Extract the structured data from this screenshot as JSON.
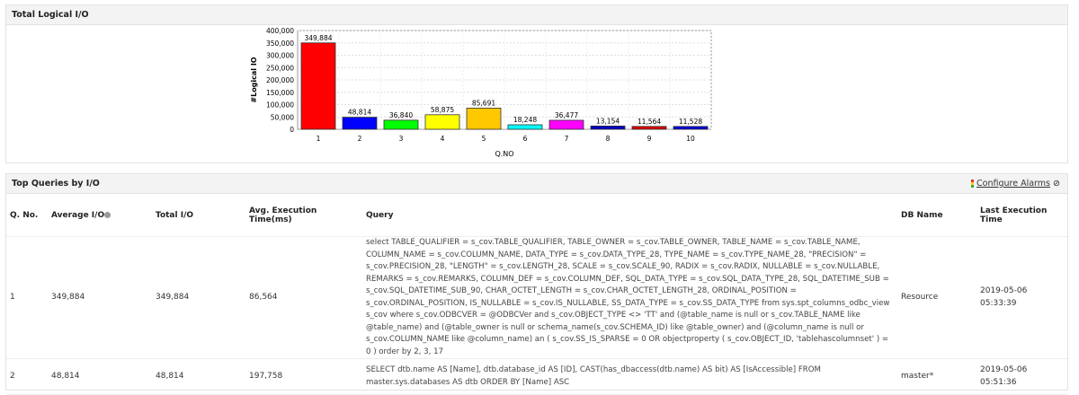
{
  "panel1": {
    "title": "Total Logical I/O"
  },
  "chart_data": {
    "type": "bar",
    "xlabel": "Q.NO",
    "ylabel": "#Logical IO",
    "ylim": [
      0,
      400000
    ],
    "yticks": [
      "0",
      "50,000",
      "100,000",
      "150,000",
      "200,000",
      "250,000",
      "300,000",
      "350,000",
      "400,000"
    ],
    "categories": [
      "1",
      "2",
      "3",
      "4",
      "5",
      "6",
      "7",
      "8",
      "9",
      "10"
    ],
    "values": [
      349884,
      48814,
      36840,
      58875,
      85691,
      18248,
      36477,
      13154,
      11564,
      11528
    ],
    "labels": [
      "349,884",
      "48,814",
      "36,840",
      "58,875",
      "85,691",
      "18,248",
      "36,477",
      "13,154",
      "11,564",
      "11,528"
    ],
    "colors": [
      "#ff0000",
      "#0000ff",
      "#00ff00",
      "#ffff00",
      "#ffc800",
      "#00ffff",
      "#ff00ff",
      "#0000c0",
      "#e00000",
      "#0000e0"
    ],
    "grid": true
  },
  "panel2": {
    "title": "Top Queries by I/O",
    "configure_alarms": "Configure Alarms",
    "columns": [
      "Q. No.",
      "Average I/O",
      "Total I/O",
      "Avg. Execution Time(ms)",
      "Query",
      "DB Name",
      "Last Execution Time"
    ],
    "rows": [
      {
        "qno": "1",
        "avg_io": "349,884",
        "total_io": "349,884",
        "avg_exec": "86,564",
        "query": "select TABLE_QUALIFIER = s_cov.TABLE_QUALIFIER, TABLE_OWNER = s_cov.TABLE_OWNER, TABLE_NAME = s_cov.TABLE_NAME, COLUMN_NAME = s_cov.COLUMN_NAME, DATA_TYPE = s_cov.DATA_TYPE_28, TYPE_NAME = s_cov.TYPE_NAME_28, \"PRECISION\" = s_cov.PRECISION_28, \"LENGTH\" = s_cov.LENGTH_28, SCALE = s_cov.SCALE_90, RADIX = s_cov.RADIX, NULLABLE = s_cov.NULLABLE, REMARKS = s_cov.REMARKS, COLUMN_DEF = s_cov.COLUMN_DEF, SQL_DATA_TYPE = s_cov.SQL_DATA_TYPE_28, SQL_DATETIME_SUB = s_cov.SQL_DATETIME_SUB_90, CHAR_OCTET_LENGTH = s_cov.CHAR_OCTET_LENGTH_28, ORDINAL_POSITION = s_cov.ORDINAL_POSITION, IS_NULLABLE = s_cov.IS_NULLABLE, SS_DATA_TYPE = s_cov.SS_DATA_TYPE from sys.spt_columns_odbc_view s_cov where s_cov.ODBCVER = @ODBCVer and s_cov.OBJECT_TYPE <> 'TT' and (@table_name is null or s_cov.TABLE_NAME like @table_name) and (@table_owner is null or schema_name(s_cov.SCHEMA_ID) like @table_owner) and (@column_name is null or s_cov.COLUMN_NAME like @column_name) an ( s_cov.SS_IS_SPARSE = 0 OR objectproperty ( s_cov.OBJECT_ID, 'tablehascolumnset' ) = 0 ) order by 2, 3, 17",
        "db": "Resource",
        "last": "2019-05-06 05:33:39"
      },
      {
        "qno": "2",
        "avg_io": "48,814",
        "total_io": "48,814",
        "avg_exec": "197,758",
        "query": "SELECT dtb.name AS [Name], dtb.database_id AS [ID], CAST(has_dbaccess(dtb.name) AS bit) AS [IsAccessible] FROM master.sys.databases AS dtb ORDER BY [Name] ASC",
        "db": "master*",
        "last": "2019-05-06 05:51:36"
      }
    ]
  }
}
